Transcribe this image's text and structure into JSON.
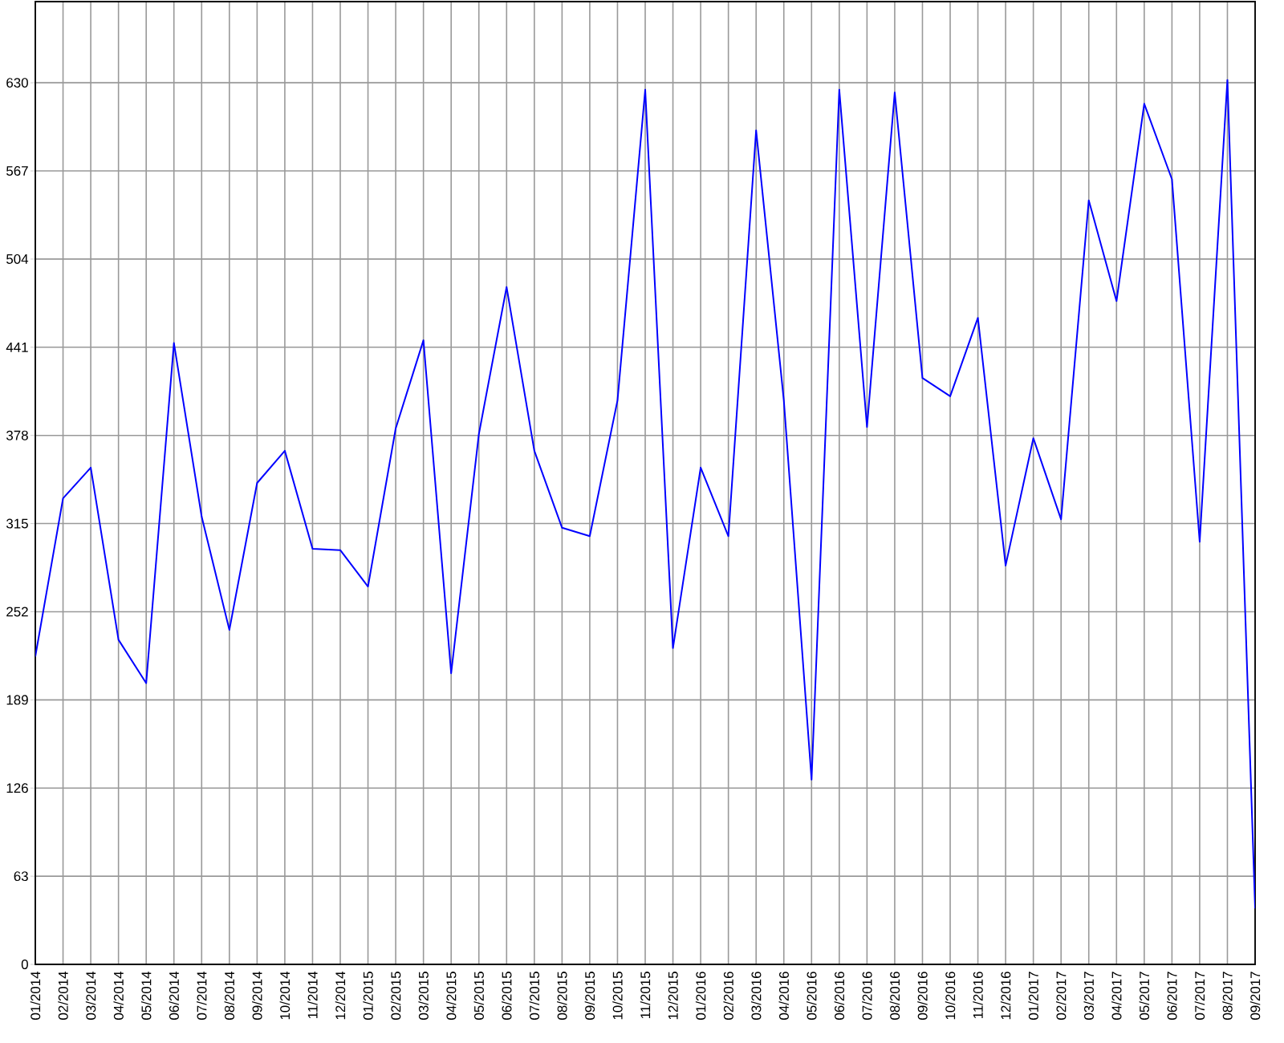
{
  "chart_data": {
    "type": "line",
    "categories": [
      "01/2014",
      "02/2014",
      "03/2014",
      "04/2014",
      "05/2014",
      "06/2014",
      "07/2014",
      "08/2014",
      "09/2014",
      "10/2014",
      "11/2014",
      "12/2014",
      "01/2015",
      "02/2015",
      "03/2015",
      "04/2015",
      "05/2015",
      "06/2015",
      "07/2015",
      "08/2015",
      "09/2015",
      "10/2015",
      "11/2015",
      "12/2015",
      "01/2016",
      "02/2016",
      "03/2016",
      "04/2016",
      "05/2016",
      "06/2016",
      "07/2016",
      "08/2016",
      "09/2016",
      "10/2016",
      "11/2016",
      "12/2016",
      "01/2017",
      "02/2017",
      "03/2017",
      "04/2017",
      "05/2017",
      "06/2017",
      "07/2017",
      "08/2017",
      "09/2017"
    ],
    "values": [
      220,
      333,
      355,
      232,
      201,
      444,
      320,
      239,
      344,
      367,
      297,
      296,
      270,
      383,
      446,
      208,
      379,
      484,
      367,
      312,
      306,
      403,
      625,
      226,
      355,
      306,
      596,
      403,
      132,
      625,
      384,
      623,
      419,
      406,
      462,
      285,
      376,
      318,
      546,
      474,
      615,
      561,
      302,
      632,
      40
    ],
    "color": "#0000ff",
    "ylim": [
      0,
      688
    ],
    "yticks": [
      0,
      63,
      126,
      189,
      252,
      315,
      378,
      441,
      504,
      567,
      630
    ],
    "grid": true,
    "marker": "none",
    "line_style": "solid"
  }
}
